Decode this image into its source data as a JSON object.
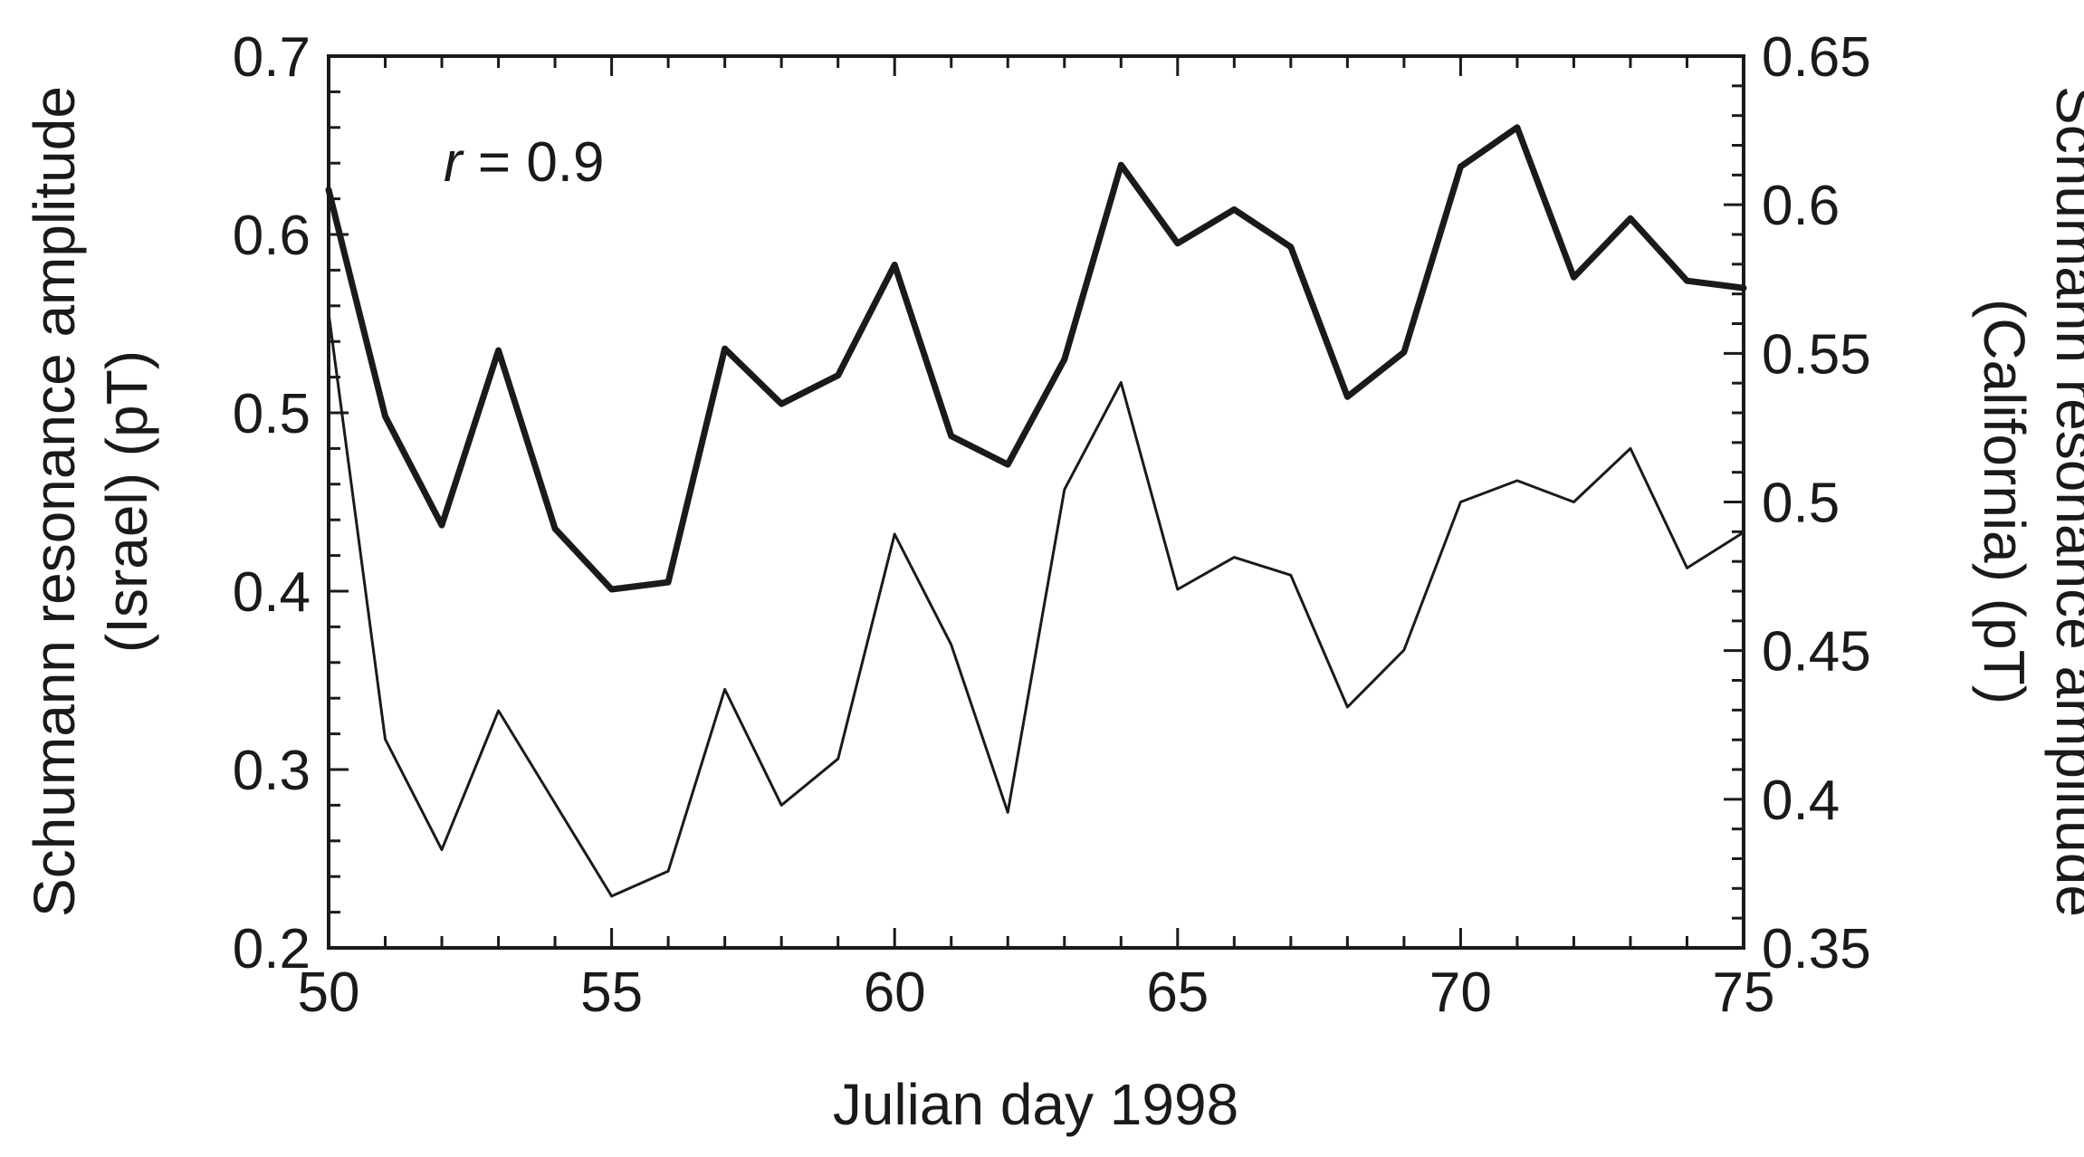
{
  "chart_data": {
    "type": "line",
    "x_axis": {
      "label": "Julian day 1998",
      "range": [
        50,
        75
      ],
      "ticks": [
        50,
        55,
        60,
        65,
        70,
        75
      ],
      "tick_labels": [
        "50",
        "55",
        "60",
        "65",
        "70",
        "75"
      ]
    },
    "y_left": {
      "label_line1": "Schumann resonance amplitude",
      "label_line2": "(Israel) (pT)",
      "range": [
        0.2,
        0.7
      ],
      "ticks": [
        0.2,
        0.3,
        0.4,
        0.5,
        0.6,
        0.7
      ],
      "tick_labels": [
        "0.2",
        "0.3",
        "0.4",
        "0.5",
        "0.6",
        "0.7"
      ]
    },
    "y_right": {
      "label_line1": "Schumann resonance amplitude",
      "label_line2": "(California) (pT)",
      "range": [
        0.35,
        0.65
      ],
      "ticks": [
        0.35,
        0.4,
        0.45,
        0.5,
        0.55,
        0.6,
        0.65
      ],
      "tick_labels": [
        "0.35",
        "0.4",
        "0.45",
        "0.5",
        "0.55",
        "0.6",
        "0.65"
      ]
    },
    "annotation": {
      "var": "r",
      "text": " = 0.9"
    },
    "grid": false,
    "series": [
      {
        "style": "thick",
        "axis": "left",
        "x": [
          50,
          51,
          52,
          53,
          54,
          55,
          56,
          57,
          58,
          59,
          60,
          61,
          62,
          63,
          64,
          65,
          66,
          67,
          68,
          69,
          70,
          71,
          72,
          73,
          74,
          75
        ],
        "y": [
          0.625,
          0.498,
          0.437,
          0.535,
          0.435,
          0.401,
          0.405,
          0.536,
          0.505,
          0.521,
          0.583,
          0.487,
          0.471,
          0.53,
          0.639,
          0.595,
          0.614,
          0.593,
          0.509,
          0.534,
          0.638,
          0.66,
          0.576,
          0.609,
          0.574,
          0.57
        ]
      },
      {
        "style": "thin",
        "axis": "left",
        "x": [
          50,
          51,
          52,
          53,
          54,
          55,
          56,
          57,
          58,
          59,
          60,
          61,
          62,
          63,
          64,
          65,
          66,
          67,
          68,
          69,
          70,
          71,
          72,
          73,
          74,
          75
        ],
        "y": [
          0.556,
          0.317,
          0.255,
          0.333,
          0.281,
          0.229,
          0.243,
          0.345,
          0.28,
          0.306,
          0.432,
          0.37,
          0.276,
          0.457,
          0.517,
          0.401,
          0.419,
          0.409,
          0.335,
          0.367,
          0.45,
          0.462,
          0.45,
          0.48,
          0.413,
          0.433
        ]
      }
    ]
  }
}
